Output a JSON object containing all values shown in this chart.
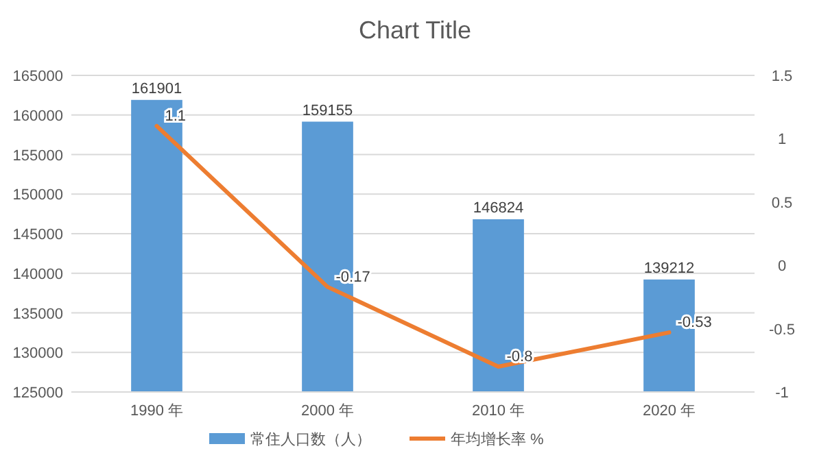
{
  "chart_data": {
    "type": "bar",
    "title": "Chart Title",
    "categories": [
      "1990 年",
      "2000 年",
      "2010 年",
      "2020 年"
    ],
    "series": [
      {
        "name": "常住人口数（人）",
        "color": "#5b9bd5",
        "values": [
          161901,
          159155,
          146824,
          139212
        ]
      },
      {
        "name": "年均增长率 %",
        "type": "line",
        "axis": "y2",
        "color": "#ed7d31",
        "values": [
          1.1,
          -0.17,
          -0.8,
          -0.53
        ]
      }
    ],
    "ylim": [
      125000,
      165000
    ],
    "yticks": [
      125000,
      130000,
      135000,
      140000,
      145000,
      150000,
      155000,
      160000,
      165000
    ],
    "y2lim": [
      -1,
      1.5
    ],
    "y2ticks": [
      -1,
      -0.5,
      0,
      0.5,
      1,
      1.5
    ],
    "grid": "y",
    "data_labels": true,
    "legend": "bottom"
  }
}
